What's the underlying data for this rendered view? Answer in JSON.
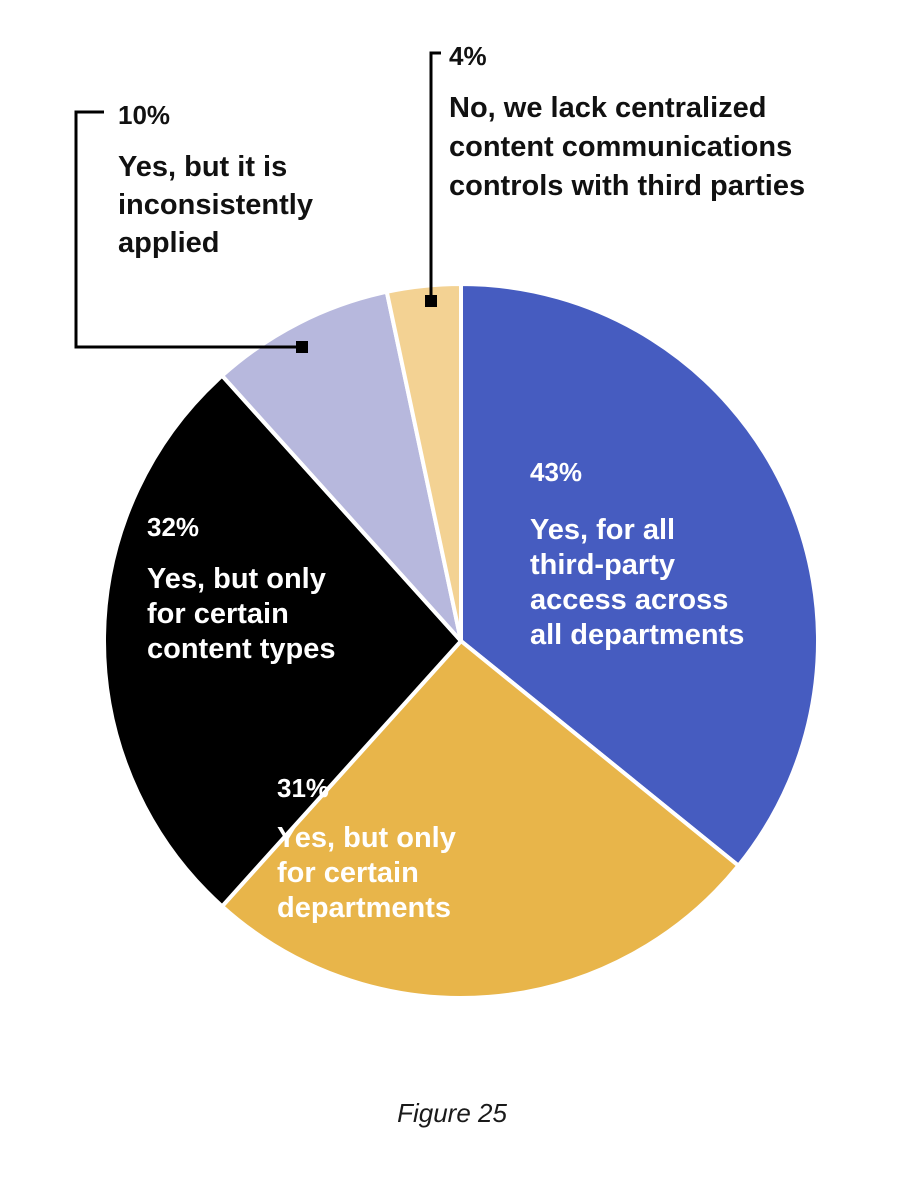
{
  "chart_data": {
    "type": "pie",
    "slices": [
      {
        "value": 43,
        "value_label": "43%",
        "label_lines": [
          "Yes, for all",
          "third-party",
          "access across",
          "all departments"
        ],
        "color": "#465CC0",
        "text_color": "#ffffff"
      },
      {
        "value": 31,
        "value_label": "31%",
        "label_lines": [
          "Yes, but only",
          "for certain",
          "departments"
        ],
        "color": "#E8B54A",
        "text_color": "#ffffff"
      },
      {
        "value": 32,
        "value_label": "32%",
        "label_lines": [
          "Yes, but only",
          "for certain",
          "content types"
        ],
        "color": "#000000",
        "text_color": "#ffffff"
      },
      {
        "value": 10,
        "value_label": "10%",
        "label_lines": [
          "Yes, but it is",
          "inconsistently",
          "applied"
        ],
        "color": "#B7B8DD",
        "text_color": "#111111"
      },
      {
        "value": 4,
        "value_label": "4%",
        "label_lines": [
          "No, we lack centralized",
          "content communications",
          "controls with third parties"
        ],
        "color": "#F3D293",
        "text_color": "#111111"
      }
    ],
    "start_angle_deg": 0,
    "direction": "clockwise",
    "slice_border_color": "#ffffff"
  },
  "caption": "Figure 25"
}
